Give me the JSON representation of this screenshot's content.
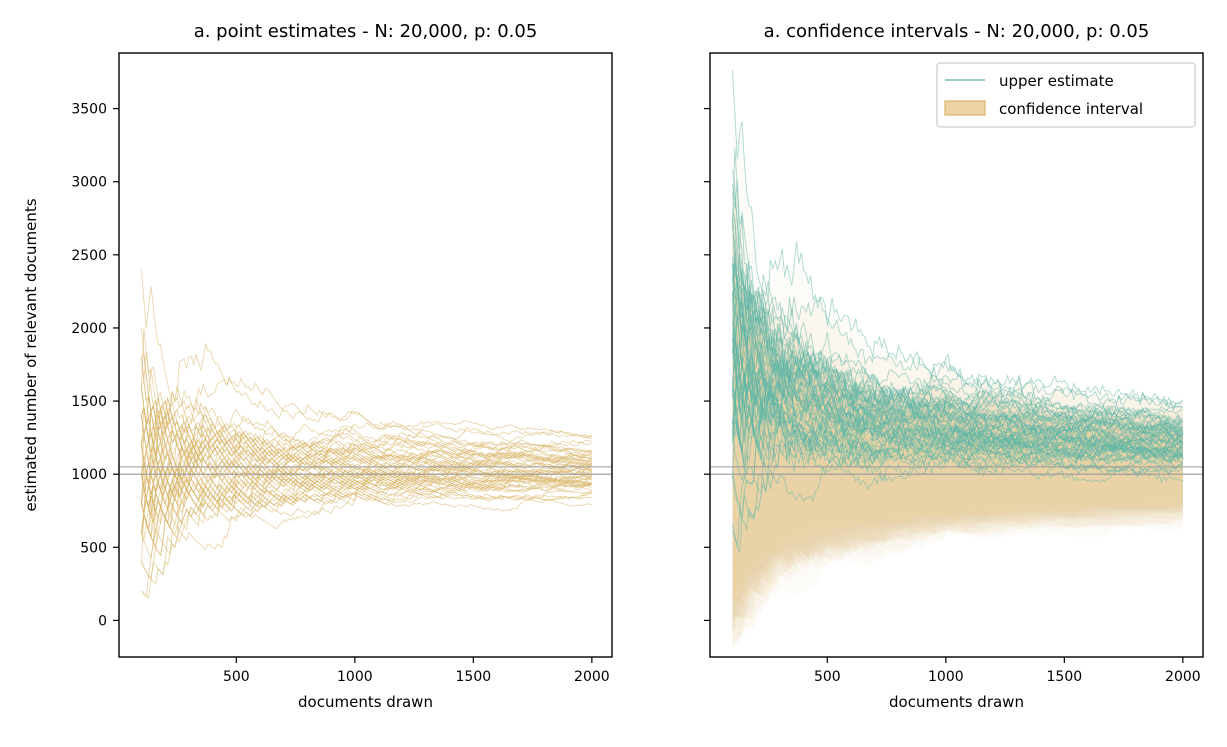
{
  "colors": {
    "estimate": "#d9b466",
    "upper": "#5ab5a7",
    "interval": "#ebd3a3",
    "reference": "#999999"
  },
  "chart_data": [
    {
      "type": "line",
      "title": "a. point estimates - N: 20,000, p: 0.05",
      "xlabel": "documents drawn",
      "ylabel": "estimated number of relevant documents",
      "xlim": [
        5,
        2085
      ],
      "ylim": [
        -250,
        3880
      ],
      "xticks": [
        500,
        1000,
        1500,
        2000
      ],
      "yticks": [
        0,
        500,
        1000,
        1500,
        2000,
        2500,
        3000,
        3500
      ],
      "x_range": [
        100,
        2000
      ],
      "n_runs": 60,
      "reference_lines": [
        1000,
        1050
      ],
      "grid": false,
      "series": [
        {
          "kind": "point_estimate",
          "color_key": "estimate"
        }
      ]
    },
    {
      "type": "line",
      "title": "a. confidence intervals - N: 20,000, p: 0.05",
      "xlabel": "documents drawn",
      "ylabel": "",
      "xlim": [
        5,
        2085
      ],
      "ylim": [
        -250,
        3880
      ],
      "xticks": [
        500,
        1000,
        1500,
        2000
      ],
      "yticks": [
        0,
        500,
        1000,
        1500,
        2000,
        2500,
        3000,
        3500
      ],
      "show_ytick_labels": false,
      "x_range": [
        100,
        2000
      ],
      "n_runs": 60,
      "reference_lines": [
        1000,
        1050
      ],
      "grid": false,
      "legend_position": "top-right",
      "series": [
        {
          "name": "upper estimate",
          "kind": "upper_estimate",
          "color_key": "upper"
        },
        {
          "name": "confidence interval",
          "kind": "confidence_interval",
          "color_key": "interval"
        }
      ]
    }
  ]
}
